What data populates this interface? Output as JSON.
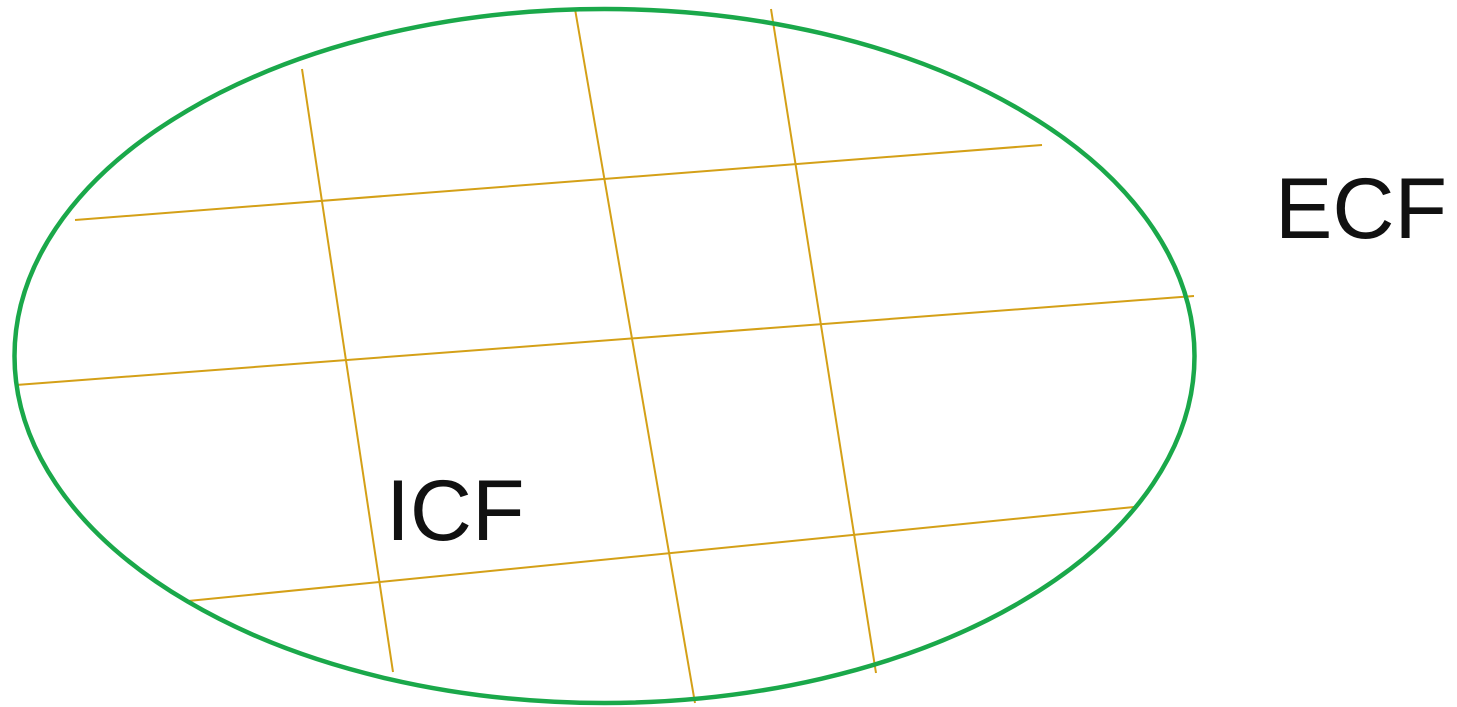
{
  "diagram": {
    "inner_label": "ICF",
    "outer_label": "ECF",
    "colors": {
      "boundary": "#1aa84a",
      "grid": "#d4a017",
      "text": "#111111"
    }
  }
}
